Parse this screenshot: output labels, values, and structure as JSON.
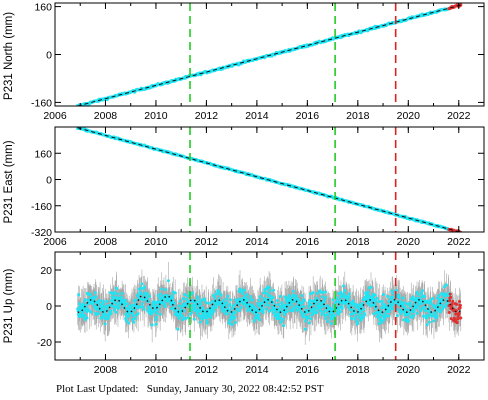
{
  "footer": {
    "label": "Plot Last Updated:",
    "timestamp": "Sunday, January 30, 2022 08:42:52 PST"
  },
  "chart_data": [
    {
      "type": "scatter",
      "ylabel": "P231 North (mm)",
      "xlim": [
        2006.0,
        2023.0
      ],
      "ylim": [
        -172,
        172
      ],
      "xticks": [
        2006,
        2008,
        2010,
        2012,
        2014,
        2016,
        2018,
        2020,
        2022
      ],
      "yticks": [
        -160,
        0,
        160
      ],
      "grid": false,
      "x_start": 2006.9,
      "x_end": 2022.08,
      "trend": [
        [
          2006.9,
          -172
        ],
        [
          2022.08,
          165
        ]
      ],
      "scatter_mm": 4,
      "events": [
        {
          "x": 2011.35,
          "color": "#22cc22"
        },
        {
          "x": 2017.1,
          "color": "#22cc22"
        },
        {
          "x": 2019.5,
          "color": "#dd2222"
        }
      ]
    },
    {
      "type": "scatter",
      "ylabel": "P231 East (mm)",
      "xlim": [
        2006.0,
        2023.0
      ],
      "ylim": [
        -320,
        320
      ],
      "xticks": [
        2006,
        2008,
        2010,
        2012,
        2014,
        2016,
        2018,
        2020,
        2022
      ],
      "yticks": [
        -320,
        -160,
        0,
        160
      ],
      "grid": false,
      "x_start": 2006.9,
      "x_end": 2022.08,
      "trend": [
        [
          2006.9,
          315
        ],
        [
          2022.08,
          -322
        ]
      ],
      "scatter_mm": 5,
      "events": [
        {
          "x": 2011.35,
          "color": "#22cc22"
        },
        {
          "x": 2017.1,
          "color": "#22cc22"
        },
        {
          "x": 2019.5,
          "color": "#dd2222"
        }
      ]
    },
    {
      "type": "scatter",
      "ylabel": "P231 Up (mm)",
      "xlim": [
        2006.0,
        2023.0
      ],
      "ylim": [
        -30,
        30
      ],
      "xticks": [
        2008,
        2010,
        2012,
        2014,
        2016,
        2018,
        2020,
        2022
      ],
      "yticks": [
        -20,
        0,
        20
      ],
      "grid": false,
      "x_start": 2006.9,
      "x_end": 2022.08,
      "seasonal_amplitude_mm": 3.5,
      "scatter_mm": 5,
      "error_bar_mm": 7,
      "events": [
        {
          "x": 2011.35,
          "color": "#22cc22"
        },
        {
          "x": 2017.1,
          "color": "#22cc22"
        },
        {
          "x": 2019.5,
          "color": "#dd2222"
        }
      ]
    }
  ]
}
